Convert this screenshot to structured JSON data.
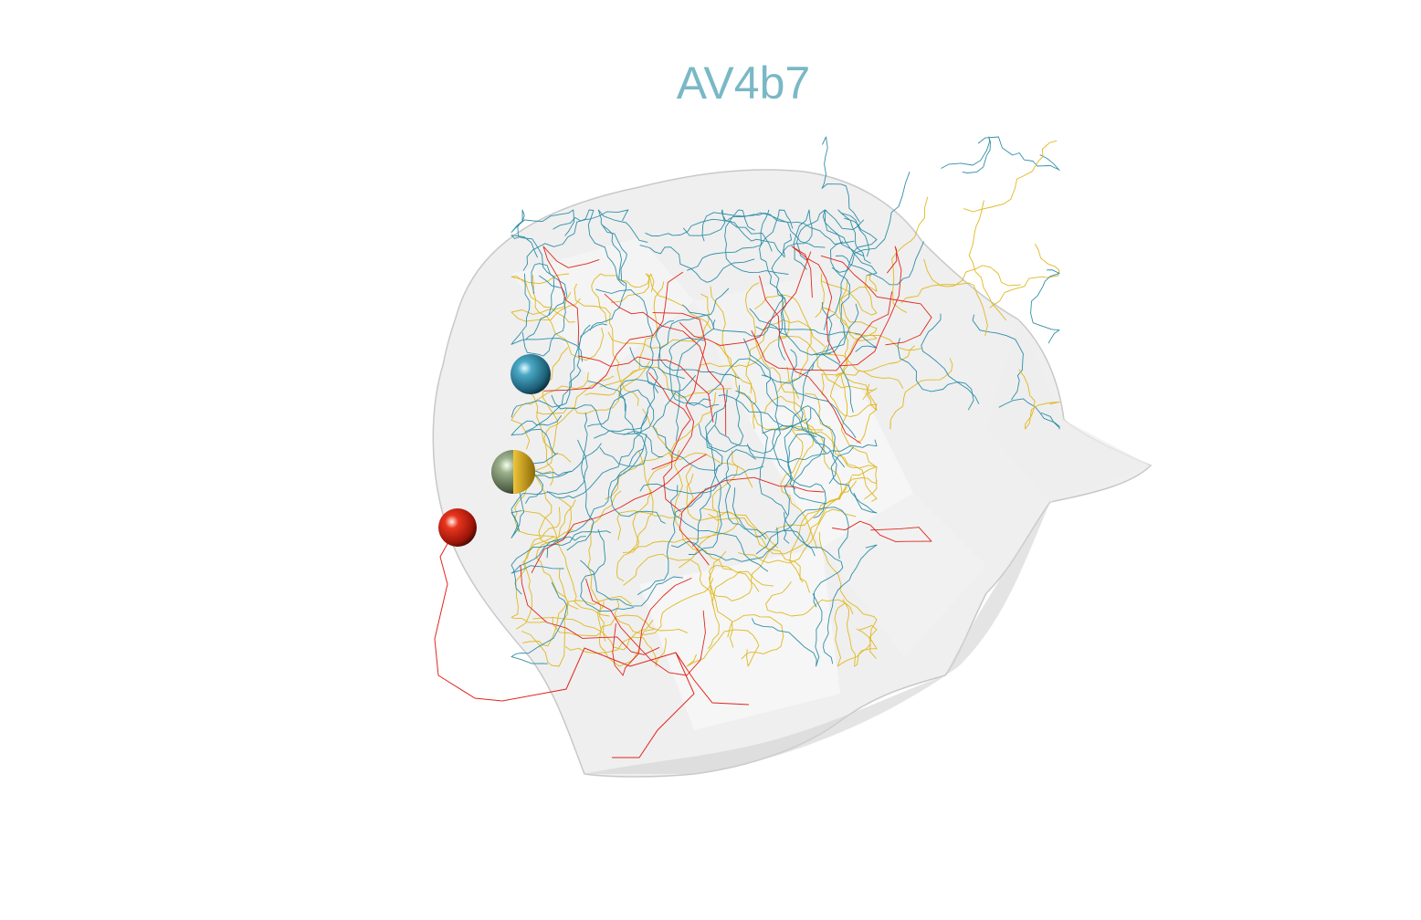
{
  "title": "AV4b7",
  "colors": {
    "title": "#7ab8c6",
    "neuron_teal": "#2f8fa8",
    "neuron_yellow": "#e0b820",
    "neuron_red": "#e0261c",
    "neuron_olive": "#8aa07a",
    "mesh": "#d8d8d8"
  },
  "neurons": [
    {
      "color_key": "neuron_teal"
    },
    {
      "color_key": "neuron_olive"
    },
    {
      "color_key": "neuron_red"
    }
  ]
}
